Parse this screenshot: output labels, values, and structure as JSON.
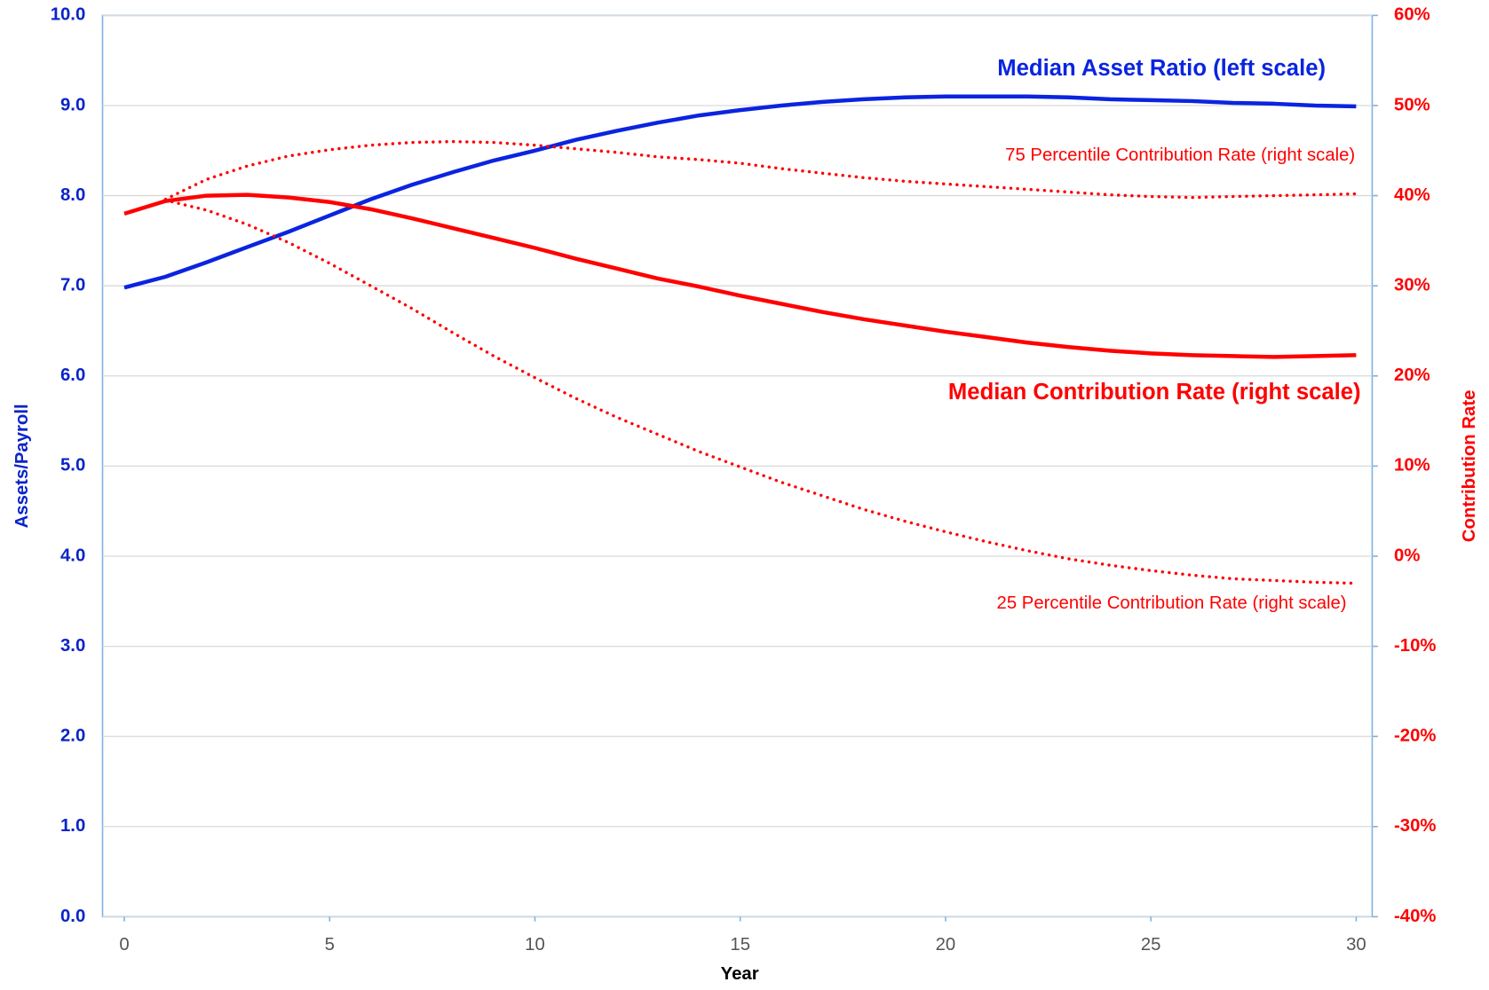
{
  "chart_data": {
    "type": "line",
    "x": [
      0,
      1,
      2,
      3,
      4,
      5,
      6,
      7,
      8,
      9,
      10,
      11,
      12,
      13,
      14,
      15,
      16,
      17,
      18,
      19,
      20,
      21,
      22,
      23,
      24,
      25,
      26,
      27,
      28,
      29,
      30
    ],
    "xlim": [
      -0.53,
      30.39
    ],
    "xticks": [
      0,
      5,
      10,
      15,
      20,
      25,
      30
    ],
    "x_label": "Year",
    "y_label": "Assets/Payroll",
    "y2_label": "Contribution Rate",
    "ylim": [
      0,
      10
    ],
    "yticks": [
      {
        "value": 0,
        "label": "0.0"
      },
      {
        "value": 1,
        "label": "1.0"
      },
      {
        "value": 2,
        "label": "2.0"
      },
      {
        "value": 3,
        "label": "3.0"
      },
      {
        "value": 4,
        "label": "4.0"
      },
      {
        "value": 5,
        "label": "5.0"
      },
      {
        "value": 6,
        "label": "6.0"
      },
      {
        "value": 7,
        "label": "7.0"
      },
      {
        "value": 8,
        "label": "8.0"
      },
      {
        "value": 9,
        "label": "9.0"
      },
      {
        "value": 10,
        "label": "10.0"
      }
    ],
    "y2lim": [
      -40,
      60
    ],
    "y2ticks": [
      {
        "value": -40,
        "label": "-40%"
      },
      {
        "value": -30,
        "label": "-30%"
      },
      {
        "value": -20,
        "label": "-20%"
      },
      {
        "value": -10,
        "label": "-10%"
      },
      {
        "value": 0,
        "label": "0%"
      },
      {
        "value": 10,
        "label": "10%"
      },
      {
        "value": 20,
        "label": "20%"
      },
      {
        "value": 30,
        "label": "30%"
      },
      {
        "value": 40,
        "label": "40%"
      },
      {
        "value": 50,
        "label": "50%"
      },
      {
        "value": 60,
        "label": "60%"
      }
    ],
    "grid": true,
    "series": [
      {
        "name": "Median Asset Ratio (left scale)",
        "color": "#0a24e0",
        "axis": "y",
        "style": "solid",
        "values": [
          6.98,
          7.1,
          7.26,
          7.43,
          7.6,
          7.78,
          7.96,
          8.12,
          8.26,
          8.39,
          8.5,
          8.62,
          8.72,
          8.81,
          8.89,
          8.95,
          9.0,
          9.04,
          9.07,
          9.09,
          9.1,
          9.1,
          9.1,
          9.09,
          9.07,
          9.06,
          9.05,
          9.03,
          9.02,
          9.0,
          8.99
        ]
      },
      {
        "name": "Median Contribution Rate (right scale)",
        "color": "#ff0000",
        "axis": "y2",
        "style": "solid",
        "values": [
          38,
          39.4,
          40,
          40.1,
          39.8,
          39.3,
          38.5,
          37.5,
          36.4,
          35.3,
          34.2,
          33.0,
          31.9,
          30.8,
          29.9,
          28.9,
          28.0,
          27.1,
          26.3,
          25.6,
          24.9,
          24.3,
          23.7,
          23.2,
          22.8,
          22.5,
          22.3,
          22.2,
          22.1,
          22.2,
          22.3
        ]
      },
      {
        "name": "75 Percentile Contribution Rate (right scale)",
        "color": "#ff0000",
        "axis": "y2",
        "style": "dotted",
        "values": [
          null,
          39.6,
          41.8,
          43.3,
          44.4,
          45.1,
          45.6,
          45.9,
          46.0,
          45.9,
          45.6,
          45.2,
          44.8,
          44.3,
          44.0,
          43.6,
          43.0,
          42.5,
          42.0,
          41.6,
          41.3,
          41.0,
          40.7,
          40.4,
          40.1,
          39.9,
          39.8,
          39.9,
          40.0,
          40.1,
          40.2
        ]
      },
      {
        "name": "25 Percentile Contribution Rate (right scale)",
        "color": "#ff0000",
        "axis": "y2",
        "style": "dotted",
        "values": [
          null,
          39.5,
          38.4,
          36.8,
          34.8,
          32.5,
          30.0,
          27.5,
          24.8,
          22.2,
          19.8,
          17.5,
          15.4,
          13.5,
          11.6,
          9.9,
          8.2,
          6.7,
          5.2,
          3.9,
          2.7,
          1.6,
          0.6,
          -0.3,
          -1.0,
          -1.6,
          -2.1,
          -2.5,
          -2.7,
          -2.9,
          -3.0
        ]
      }
    ]
  }
}
